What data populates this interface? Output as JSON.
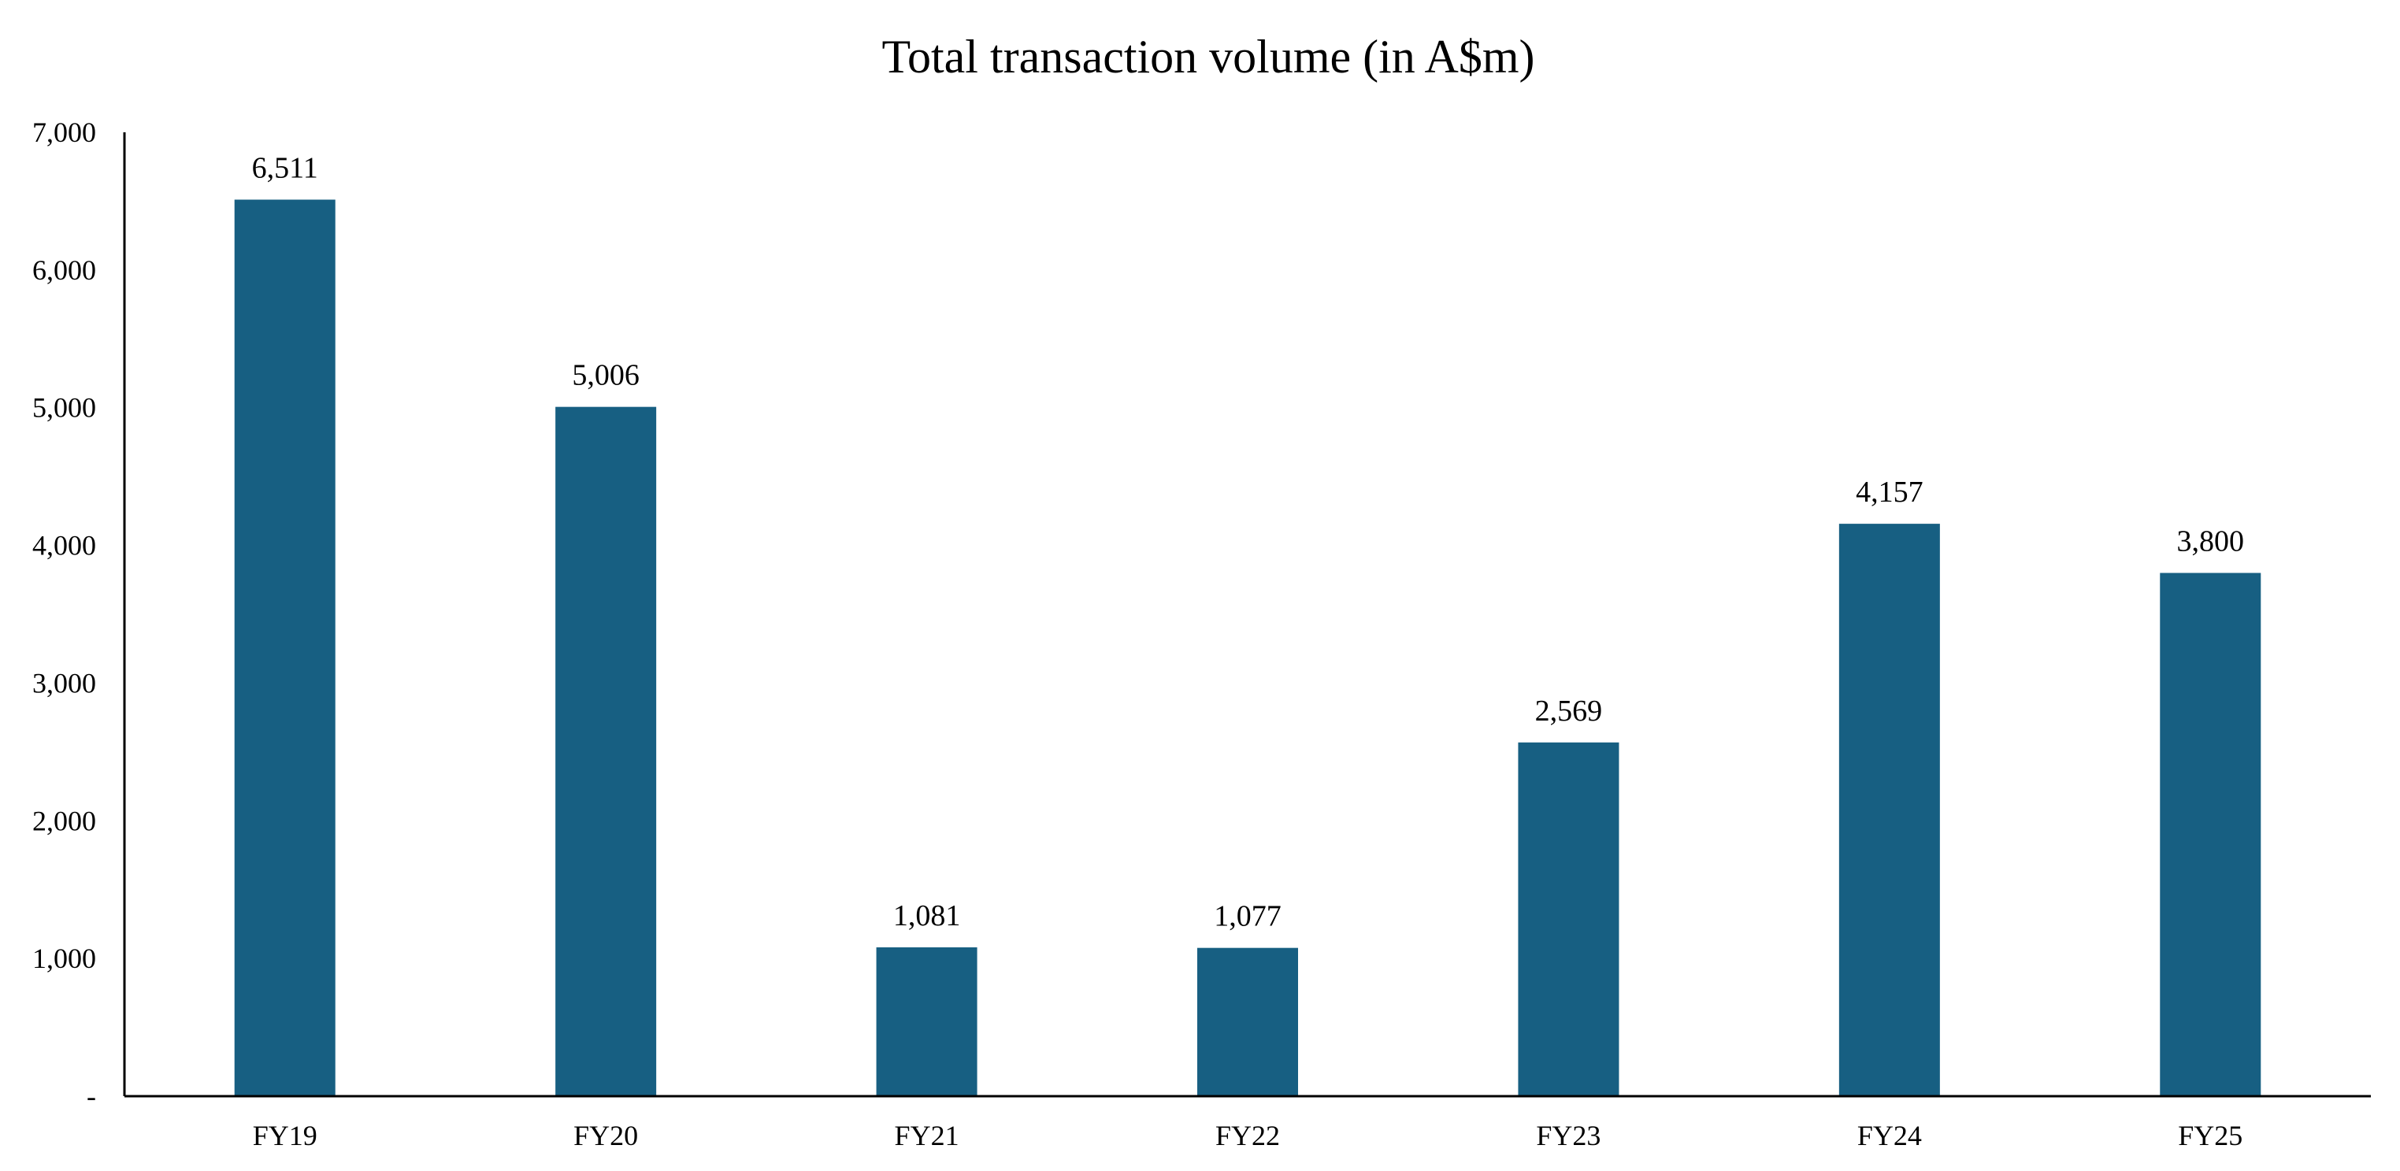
{
  "chart_data": {
    "type": "bar",
    "title": "Total transaction volume (in A$m)",
    "xlabel": "",
    "ylabel": "",
    "categories": [
      "FY19",
      "FY20",
      "FY21",
      "FY22",
      "FY23",
      "FY24",
      "FY25"
    ],
    "values": [
      6511,
      5006,
      1081,
      1077,
      2569,
      4157,
      3800
    ],
    "data_labels": [
      "6,511",
      "5,006",
      "1,081",
      "1,077",
      "2,569",
      "4,157",
      "3,800"
    ],
    "ylim": [
      0,
      7000
    ],
    "yticks": [
      0,
      1000,
      2000,
      3000,
      4000,
      5000,
      6000,
      7000
    ],
    "ytick_labels": [
      "-",
      "1,000",
      "2,000",
      "3,000",
      "4,000",
      "5,000",
      "6,000",
      "7,000"
    ],
    "grid": false,
    "legend": "none",
    "bar_color": "#175f82"
  }
}
